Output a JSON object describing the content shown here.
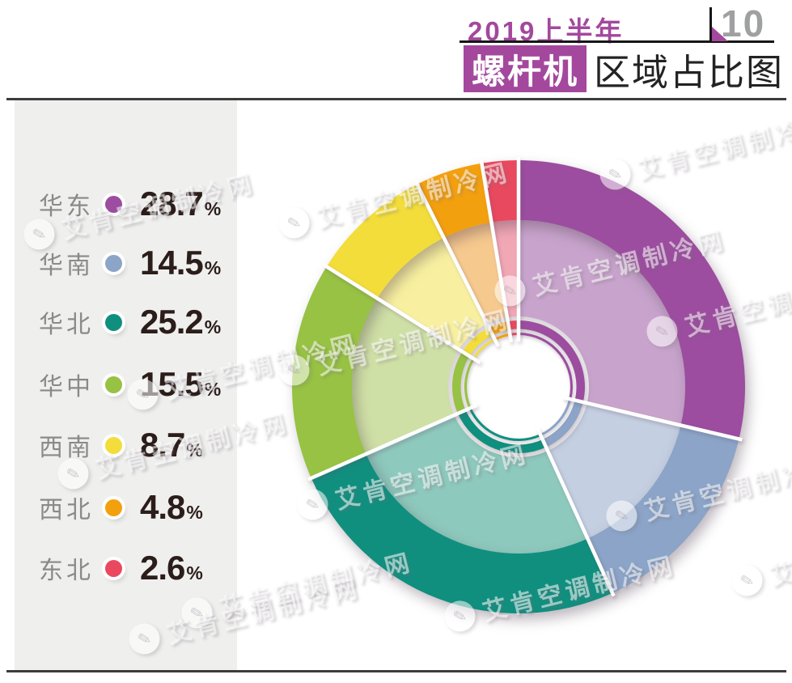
{
  "header": {
    "period": "2019上半年",
    "page_number": "10",
    "title_highlight": "螺杆机",
    "title_rest": "区域占比图"
  },
  "watermark": {
    "text": "艾肯空调制冷网"
  },
  "chart_data": {
    "type": "pie",
    "subtype": "multi-ring-donut",
    "title": "2019上半年螺杆机区域占比图",
    "unit": "%",
    "categories": [
      "华东",
      "华南",
      "华北",
      "华中",
      "西南",
      "西北",
      "东北"
    ],
    "values": [
      28.7,
      14.5,
      25.2,
      15.5,
      8.7,
      4.8,
      2.6
    ],
    "colors": [
      "#9c4d9f",
      "#8ba4c7",
      "#108f7f",
      "#97c243",
      "#f2dd3b",
      "#f3a00f",
      "#e9495f"
    ],
    "light_colors": [
      "#c8a4cc",
      "#c4cfe2",
      "#8ec9bd",
      "#cfe0a6",
      "#f8f0a0",
      "#f6c98e",
      "#f2a7b5"
    ],
    "accent_color": "#a3489d",
    "start_angle_deg": 0,
    "direction": "clockwise",
    "legend_position": "left"
  }
}
